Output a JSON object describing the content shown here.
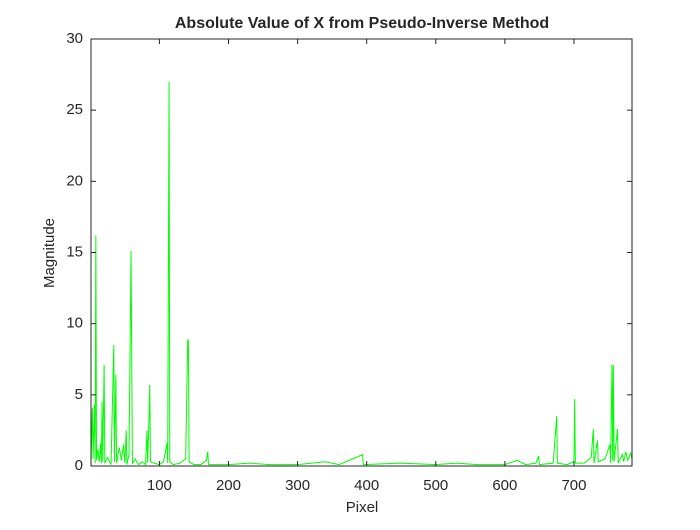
{
  "chart_data": {
    "type": "line",
    "title": "Absolute Value of X from Pseudo-Inverse Method",
    "x_label": "Pixel",
    "y_label": "Magnitude",
    "x": [
      1,
      3,
      4,
      6,
      7,
      8,
      9,
      11,
      13,
      15,
      16,
      17,
      18,
      20,
      21,
      25,
      30,
      34,
      35,
      37,
      38,
      42,
      45,
      48,
      50,
      52,
      53,
      56,
      59,
      60,
      61,
      65,
      70,
      75,
      80,
      82,
      83,
      85,
      86,
      87,
      92,
      100,
      106,
      111,
      112,
      114,
      115,
      120,
      130,
      138,
      141,
      142,
      143,
      150,
      160,
      168,
      170,
      171,
      200,
      230,
      260,
      300,
      340,
      360,
      394,
      395,
      450,
      500,
      530,
      560,
      600,
      618,
      630,
      645,
      649,
      650,
      670,
      675,
      676,
      690,
      700,
      701,
      702,
      715,
      725,
      728,
      729,
      734,
      735,
      745,
      752,
      753,
      755,
      756,
      757,
      758,
      763,
      764,
      770,
      772,
      775,
      778,
      782,
      784
    ],
    "series": [
      {
        "color": "#00ff00",
        "values": [
          0.3,
          4.1,
          0.5,
          4.3,
          0.2,
          16.2,
          0.4,
          1.2,
          0.3,
          1.6,
          0.2,
          4.5,
          0.3,
          7.1,
          0.2,
          0.6,
          0.1,
          8.5,
          0.3,
          6.4,
          0.2,
          1.3,
          0.4,
          1.5,
          0.2,
          2.5,
          0.1,
          0.8,
          15.1,
          6.8,
          0.2,
          0.5,
          0.1,
          0.3,
          0.1,
          2.5,
          0.2,
          3.5,
          5.7,
          0.3,
          0.2,
          0.1,
          0.3,
          1.6,
          0.2,
          27,
          0.3,
          0.1,
          0.2,
          0.5,
          8.9,
          8.8,
          0.3,
          0.1,
          0.1,
          0.4,
          1.0,
          0.1,
          0.1,
          0.2,
          0.1,
          0.1,
          0.3,
          0.1,
          0.8,
          0.1,
          0.2,
          0.1,
          0.2,
          0.1,
          0.1,
          0.4,
          0.1,
          0.2,
          0.7,
          0.1,
          0.2,
          3.5,
          0.2,
          0.1,
          0.3,
          4.7,
          0.2,
          0.2,
          0.6,
          2.6,
          0.2,
          1.8,
          0.3,
          0.5,
          1.5,
          0.2,
          7.1,
          0.4,
          7.1,
          0.3,
          2.6,
          0.2,
          0.8,
          0.3,
          1.0,
          0.4,
          0.9,
          0.5
        ]
      }
    ],
    "xlim": [
      1,
      784
    ],
    "xticks": [
      100,
      200,
      300,
      400,
      500,
      600,
      700
    ],
    "ylim": [
      0,
      30
    ],
    "yticks": [
      0,
      5,
      10,
      15,
      20,
      25,
      30
    ],
    "grid": false
  }
}
